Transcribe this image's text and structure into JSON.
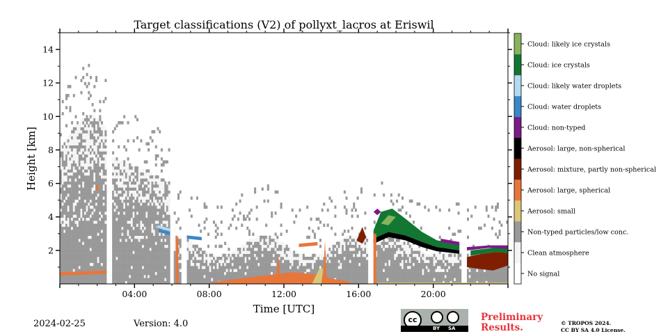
{
  "chart_data": {
    "type": "heatmap",
    "title": "Target classifications (V2) of pollyxt_lacros at Eriswil",
    "xlabel": "Time [UTC]",
    "ylabel": "Height [km]",
    "xlim": [
      0,
      24
    ],
    "ylim": [
      0,
      15
    ],
    "x_ticks": [
      "04:00",
      "08:00",
      "12:00",
      "16:00",
      "20:00"
    ],
    "y_ticks": [
      "2",
      "4",
      "6",
      "8",
      "10",
      "12",
      "14"
    ],
    "classes": [
      {
        "label": "No signal",
        "color": "#ffffff"
      },
      {
        "label": "Clean atmosphere",
        "color": "#f5f5f5"
      },
      {
        "label": "Non-typed particles/low conc.",
        "color": "#999999"
      },
      {
        "label": "Aerosol: small",
        "color": "#dcc777"
      },
      {
        "label": "Aerosol: large, spherical",
        "color": "#e8763a"
      },
      {
        "label": "Aerosol: mixture, partly non-spherical",
        "color": "#7f1f00"
      },
      {
        "label": "Aerosol: large, non-spherical",
        "color": "#000000"
      },
      {
        "label": "Cloud: non-typed",
        "color": "#7d1b86"
      },
      {
        "label": "Cloud: water droplets",
        "color": "#3a88c8"
      },
      {
        "label": "Cloud: likely water droplets",
        "color": "#b4daf2"
      },
      {
        "label": "Cloud: ice crystals",
        "color": "#117733"
      },
      {
        "label": "Cloud: likely ice crystals",
        "color": "#86b35c"
      }
    ],
    "data_gaps_utc": [
      [
        2.5,
        2.8
      ],
      [
        5.9,
        6.1
      ],
      [
        6.5,
        6.8
      ],
      [
        16.5,
        16.8
      ],
      [
        21.5,
        21.8
      ]
    ]
  },
  "footer": {
    "date": "2024-02-25",
    "version": "Version: 4.0",
    "preliminary": [
      "Preliminary",
      "Results."
    ],
    "license": [
      "© TROPOS 2024.",
      "CC BY SA 4.0 License."
    ],
    "cc_badge": {
      "icon": "cc",
      "labels": [
        "BY",
        "SA"
      ]
    }
  }
}
